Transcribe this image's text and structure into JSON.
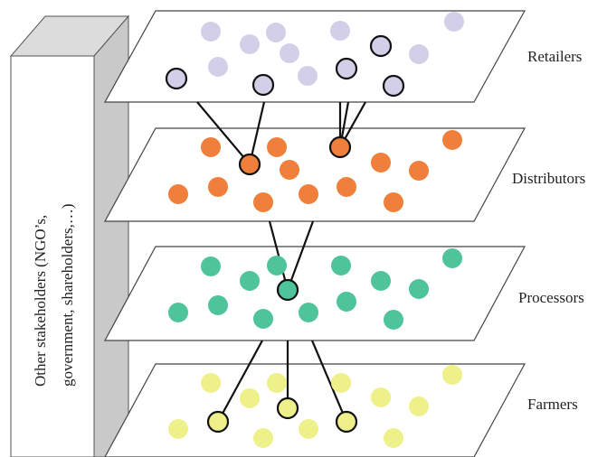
{
  "side_panel": {
    "line1": "Other stakeholders (NGO’s,",
    "line2": "government, shareholders,…)",
    "front_color": "#ffffff",
    "side_color": "#c9c9c9",
    "top_color": "#dcdcdc"
  },
  "layers": [
    {
      "id": "retailers",
      "label": "Retailers",
      "color": "#d4cfe8",
      "connector_color": "#d4cfe8"
    },
    {
      "id": "distributors",
      "label": "Distributors",
      "color": "#ef7f3a",
      "connector_color": "#ef7f3a"
    },
    {
      "id": "processors",
      "label": "Processors",
      "color": "#4fc49a",
      "connector_color": "#4fc49a"
    },
    {
      "id": "farmers",
      "label": "Farmers",
      "color": "#eef08a",
      "connector_color": "#eef08a"
    }
  ],
  "link_color": "#111111"
}
